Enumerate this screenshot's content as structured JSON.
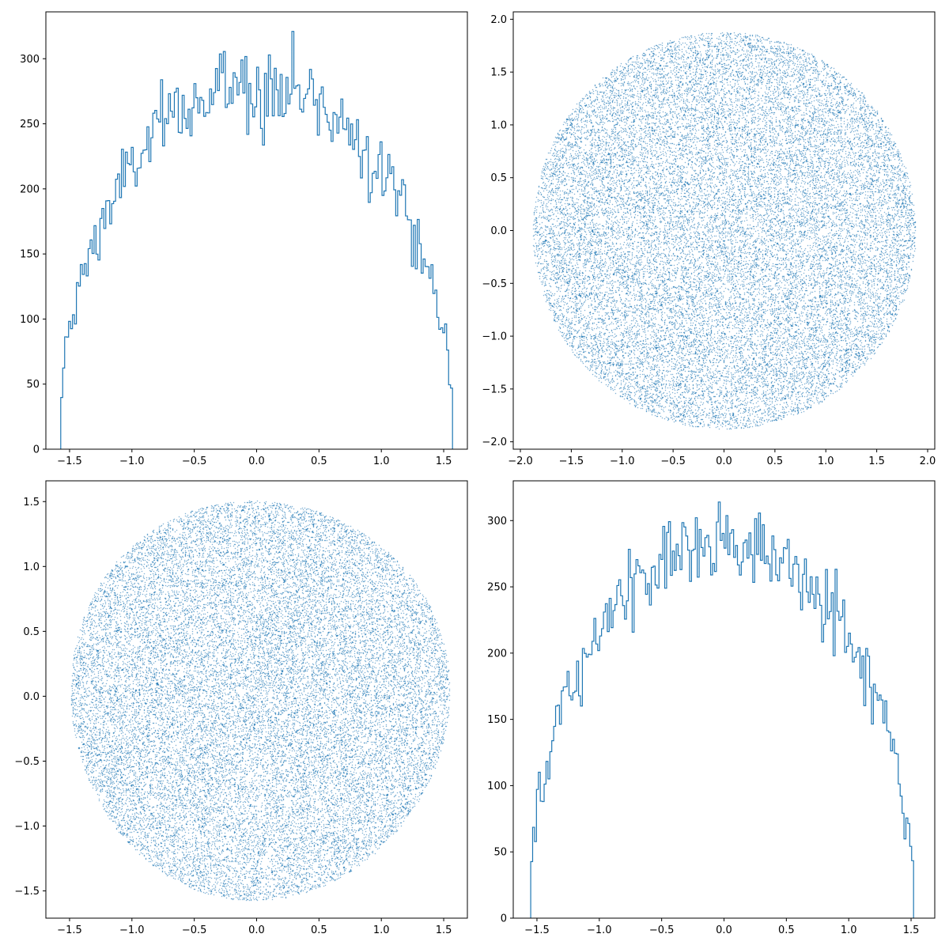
{
  "figure": {
    "accent_color": "#1f77b4",
    "panel_count": 4
  },
  "chart_data": [
    {
      "panel": "top-left",
      "type": "histogram",
      "histtype": "step",
      "color": "#1f77b4",
      "xlim": [
        -1.69,
        1.69
      ],
      "ylim": [
        0,
        336
      ],
      "xticks": [
        -1.5,
        -1.0,
        -0.5,
        0.0,
        0.5,
        1.0,
        1.5
      ],
      "xtick_labels": [
        "−1.5",
        "−1.0",
        "−0.5",
        "0.0",
        "0.5",
        "1.0",
        "1.5"
      ],
      "yticks": [
        0,
        50,
        100,
        150,
        200,
        250,
        300
      ],
      "ytick_labels": [
        "0",
        "50",
        "100",
        "150",
        "200",
        "250",
        "300"
      ],
      "bin_range": [
        -1.5708,
        1.5708
      ],
      "bin_count": 200,
      "peak_value": 321,
      "envelope": "semicircle (Wigner), approx. 280 at center falling to ~40 at the edges"
    },
    {
      "panel": "top-right",
      "type": "scatter",
      "marker": "pixel",
      "color": "#1f77b4",
      "shape": "disk",
      "radius": 1.88,
      "xlim": [
        -2.07,
        2.07
      ],
      "ylim": [
        -2.07,
        2.07
      ],
      "xticks": [
        -2.0,
        -1.5,
        -1.0,
        -0.5,
        0.0,
        0.5,
        1.0,
        1.5,
        2.0
      ],
      "xtick_labels": [
        "−2.0",
        "−1.5",
        "−1.0",
        "−0.5",
        "0.0",
        "0.5",
        "1.0",
        "1.5",
        "2.0"
      ],
      "yticks": [
        -2.0,
        -1.5,
        -1.0,
        -0.5,
        0.0,
        0.5,
        1.0,
        1.5,
        2.0
      ],
      "ytick_labels": [
        "−2.0",
        "−1.5",
        "−1.0",
        "−0.5",
        "0.0",
        "0.5",
        "1.0",
        "1.5",
        "2.0"
      ]
    },
    {
      "panel": "bottom-left",
      "type": "scatter",
      "marker": "pixel",
      "color": "#1f77b4",
      "shape": "slightly irregular disk",
      "x_extent": [
        -1.52,
        1.55
      ],
      "y_extent": [
        -1.54,
        1.51
      ],
      "xlim": [
        -1.69,
        1.69
      ],
      "ylim": [
        -1.71,
        1.66
      ],
      "xticks": [
        -1.5,
        -1.0,
        -0.5,
        0.0,
        0.5,
        1.0,
        1.5
      ],
      "xtick_labels": [
        "−1.5",
        "−1.0",
        "−0.5",
        "0.0",
        "0.5",
        "1.0",
        "1.5"
      ],
      "yticks": [
        -1.5,
        -1.0,
        -0.5,
        0.0,
        0.5,
        1.0,
        1.5
      ],
      "ytick_labels": [
        "−1.5",
        "−1.0",
        "−0.5",
        "0.0",
        "0.5",
        "1.0",
        "1.5"
      ]
    },
    {
      "panel": "bottom-right",
      "type": "histogram",
      "histtype": "step",
      "color": "#1f77b4",
      "xlim": [
        -1.69,
        1.69
      ],
      "ylim": [
        0,
        330
      ],
      "xticks": [
        -1.5,
        -1.0,
        -0.5,
        0.0,
        0.5,
        1.0,
        1.5
      ],
      "xtick_labels": [
        "−1.5",
        "−1.0",
        "−0.5",
        "0.0",
        "0.5",
        "1.0",
        "1.5"
      ],
      "yticks": [
        0,
        50,
        100,
        150,
        200,
        250,
        300
      ],
      "ytick_labels": [
        "0",
        "50",
        "100",
        "150",
        "200",
        "250",
        "300"
      ],
      "bin_range": [
        -1.55,
        1.52
      ],
      "bin_count": 200,
      "peak_value": 314,
      "envelope": "semicircle (Wigner), approx. 280 at center falling to ~35 at the edges"
    }
  ]
}
